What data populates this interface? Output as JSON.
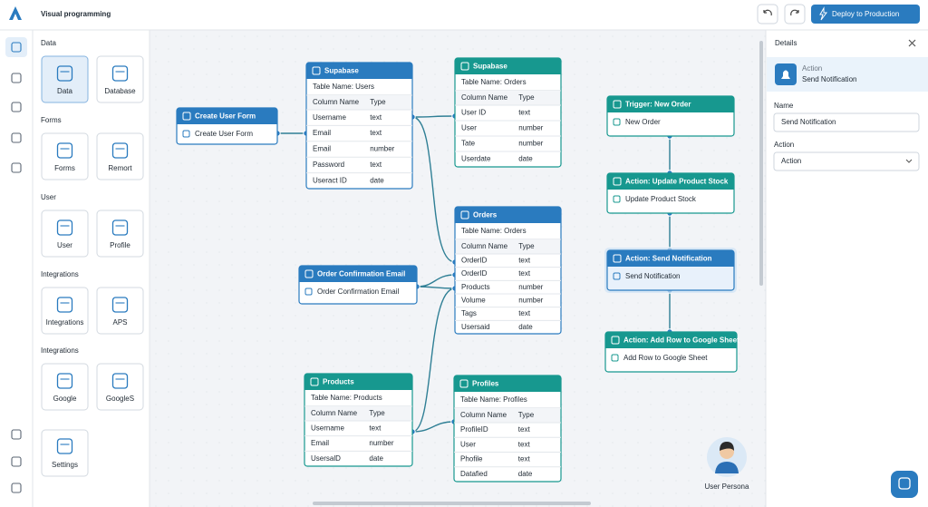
{
  "header": {
    "title": "Visual programming",
    "deploy_button": "Deploy to Production"
  },
  "palette": {
    "sections": [
      {
        "title": "Data",
        "items": [
          "Data",
          "Database"
        ]
      },
      {
        "title": "Forms",
        "items": [
          "Forms",
          "Remort"
        ]
      },
      {
        "title": "User",
        "items": [
          "User",
          "Profile"
        ]
      },
      {
        "title": "Integrations",
        "items": [
          "Integrations",
          "APS"
        ]
      },
      {
        "title": "Integrations",
        "items": [
          "Google",
          "GoogleS"
        ]
      }
    ],
    "settings": "Settings"
  },
  "nodes": [
    {
      "title": "Create User Form",
      "body": "Create User Form"
    },
    {
      "title": "Supabase",
      "subtitle": "Table Name: Users",
      "columns": [
        "Column Name",
        "Type"
      ],
      "rows": [
        [
          "Username",
          "text"
        ],
        [
          "Email",
          "text"
        ],
        [
          "Email",
          "number"
        ],
        [
          "Password",
          "text"
        ],
        [
          "Useract ID",
          "date"
        ]
      ]
    },
    {
      "title": "Supabase",
      "subtitle": "Table Name: Orders",
      "columns": [
        "Column Name",
        "Type"
      ],
      "rows": [
        [
          "User ID",
          "text"
        ],
        [
          "User",
          "number"
        ],
        [
          "Tate",
          "number"
        ],
        [
          "Userdate",
          "date"
        ]
      ]
    },
    {
      "title": "Orders",
      "subtitle": "Table Name: Orders",
      "columns": [
        "Column Name",
        "Type"
      ],
      "rows": [
        [
          "OrderID",
          "text"
        ],
        [
          "OrderID",
          "text"
        ],
        [
          "Products",
          "number"
        ],
        [
          "Volume",
          "number"
        ],
        [
          "Tags",
          "text"
        ],
        [
          "Usersaid",
          "date"
        ]
      ]
    },
    {
      "title": "Order Confirmation Email",
      "body": "Order Confirmation Email"
    },
    {
      "title": "Products",
      "subtitle": "Table Name: Products",
      "columns": [
        "Column Name",
        "Type"
      ],
      "rows": [
        [
          "Username",
          "text"
        ],
        [
          "Email",
          "number"
        ],
        [
          "UsersalD",
          "date"
        ]
      ]
    },
    {
      "title": "Profiles",
      "subtitle": "Table Name: Profiles",
      "columns": [
        "Column Name",
        "Type"
      ],
      "rows": [
        [
          "ProfileID",
          "text"
        ],
        [
          "User",
          "text"
        ],
        [
          "Phofile",
          "text"
        ],
        [
          "Datafied",
          "date"
        ]
      ]
    },
    {
      "title": "Trigger: New Order",
      "body": "New Order"
    },
    {
      "title": "Action: Update Product Stock",
      "body": "Update Product Stock"
    },
    {
      "title": "Action: Send Notification",
      "body": "Send Notification"
    },
    {
      "title": "Action: Add Row to Google Sheet",
      "body": "Add Row to Google Sheet"
    }
  ],
  "details": {
    "title": "Details",
    "card_label": "Action",
    "card_title": "Send Notification",
    "name_label": "Name",
    "name_value": "Send Notification",
    "action_label": "Action",
    "action_value": "Action"
  },
  "persona": "User Persona"
}
